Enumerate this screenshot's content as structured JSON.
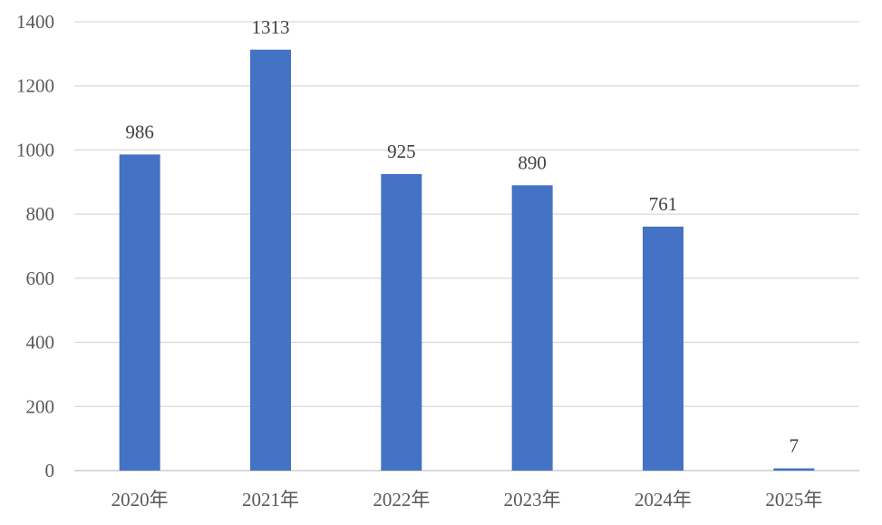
{
  "chart_data": {
    "type": "bar",
    "title": "",
    "xlabel": "",
    "ylabel": "",
    "categories": [
      "2020年",
      "2021年",
      "2022年",
      "2023年",
      "2024年",
      "2025年"
    ],
    "values": [
      986,
      1313,
      925,
      890,
      761,
      7
    ],
    "data_labels": [
      "986",
      "1313",
      "925",
      "890",
      "761",
      "7"
    ],
    "ylim": [
      0,
      1400
    ],
    "yticks": [
      0,
      200,
      400,
      600,
      800,
      1000,
      1200,
      1400
    ],
    "ytick_labels": [
      "0",
      "200",
      "400",
      "600",
      "800",
      "1000",
      "1200",
      "1400"
    ],
    "grid": true,
    "legend": "none",
    "colors": {
      "bar": "#4472C4",
      "grid": "#D9D9D9",
      "text": "#404040"
    }
  }
}
